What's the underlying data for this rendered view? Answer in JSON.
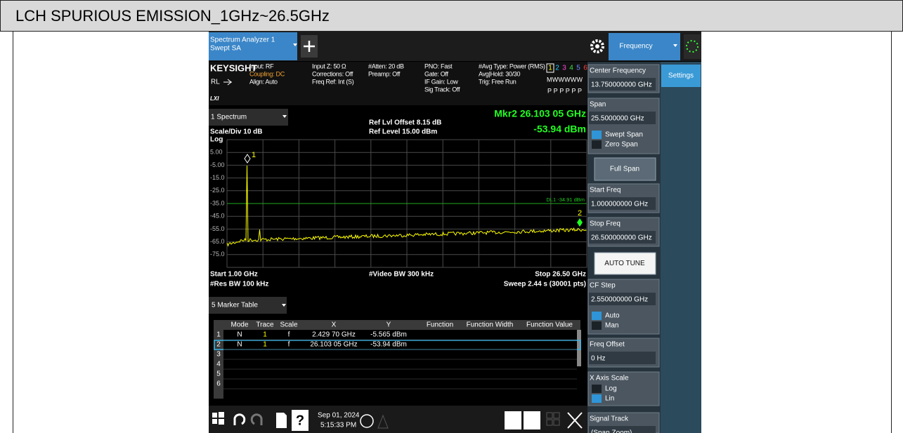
{
  "header": {
    "title": "LCH SPURIOUS EMISSION_1GHz~26.5GHz"
  },
  "app": {
    "tab": [
      "Spectrum Analyzer 1",
      "Swept SA"
    ],
    "menu": "Frequency",
    "side_tab": "Settings"
  },
  "status": {
    "brand": "KEYSIGHT",
    "rl": "RL",
    "lxi": "LXI",
    "columns": [
      [
        "Input: RF",
        "Coupling: DC",
        "Align: Auto"
      ],
      [
        "Input Z: 50 Ω",
        "Corrections: Off",
        "Freq Ref: Int (S)"
      ],
      [
        "#Atten: 20 dB",
        "Preamp: Off"
      ],
      [
        "PNO: Fast",
        "Gate: Off",
        "IF Gain: Low",
        "Sig Track: Off"
      ],
      [
        "#Avg Type: Power (RMS)",
        "Avg|Hold: 30/30",
        "Trig: Free Run"
      ]
    ],
    "traces": [
      "1",
      "2",
      "3",
      "4",
      "5",
      "6"
    ],
    "trace_types": "MWWWWW",
    "detectors": "PPPPPP"
  },
  "graph": {
    "window": "1 Spectrum",
    "scale": "Scale/Div 10 dB",
    "log": "Log",
    "ref_offset": "Ref Lvl Offset 8.15 dB",
    "ref_level": "Ref Level 15.00 dBm",
    "marker_freq": "Mkr2  26.103 05 GHz",
    "marker_amp": "-53.94 dBm",
    "y_labels": [
      "5.00",
      "-5.00",
      "-15.0",
      "-25.0",
      "-35.0",
      "-45.0",
      "-55.0",
      "-65.0",
      "-75.0"
    ],
    "display_line": "DL1 -34.91 dBm",
    "markers": [
      "1",
      "2"
    ],
    "start": "Start 1.00 GHz",
    "vbw": "#Video BW 300 kHz",
    "stop": "Stop 26.50 GHz",
    "rbw": "#Res BW 100 kHz",
    "sweep": "Sweep 2.44 s (30001 pts)"
  },
  "marker_table": {
    "title": "5 Marker Table",
    "columns": [
      "Mode",
      "Trace",
      "Scale",
      "X",
      "Y",
      "Function",
      "Function Width",
      "Function Value"
    ],
    "rows": [
      [
        "1",
        "N",
        "1",
        "f",
        "2.429 70 GHz",
        "-5.565 dBm"
      ],
      [
        "2",
        "N",
        "1",
        "f",
        "26.103 05 GHz",
        "-53.94 dBm"
      ],
      [
        "3"
      ],
      [
        "4"
      ],
      [
        "5"
      ],
      [
        "6"
      ]
    ]
  },
  "panel": [
    {
      "label": "Center Frequency",
      "value": "13.750000000 GHz"
    },
    {
      "label": "Span",
      "value": "25.5000000 GHz",
      "options": [
        "Swept Span",
        "Zero Span"
      ]
    },
    {
      "button": "Full Span"
    },
    {
      "label": "Start Freq",
      "value": "1.000000000 GHz"
    },
    {
      "label": "Stop Freq",
      "value": "26.500000000 GHz"
    },
    {
      "button": "AUTO TUNE"
    },
    {
      "label": "CF Step",
      "value": "2.550000000 GHz",
      "options": [
        "Auto",
        "Man"
      ]
    },
    {
      "label": "Freq Offset",
      "value": "0 Hz"
    },
    {
      "label": "X Axis Scale",
      "options": [
        "Log",
        "Lin"
      ]
    },
    {
      "label": "Signal Track",
      "value": "(Span Zoom)"
    }
  ],
  "taskbar": {
    "date": "Sep 01, 2024",
    "time": "5:15:33 PM"
  }
}
